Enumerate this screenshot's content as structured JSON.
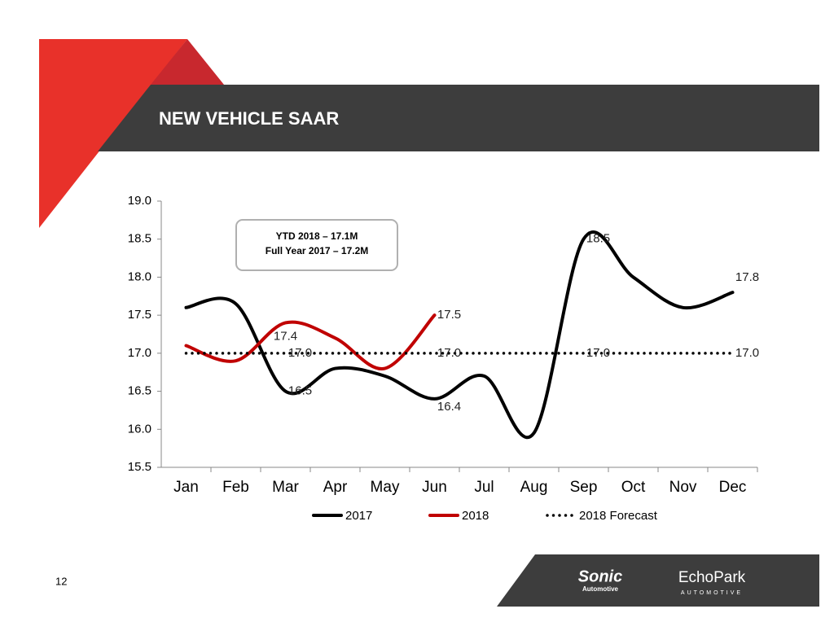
{
  "slide": {
    "title": "NEW VEHICLE SAAR",
    "page_number": "12",
    "logo_sonic": "Sonic",
    "logo_sonic_sub": "Automotive",
    "logo_echopark": "EchoPark",
    "logo_echopark_sub": "AUTOMOTIVE"
  },
  "chart_data": {
    "type": "line",
    "annotations": [
      "YTD 2018 – 17.1M",
      "Full Year 2017 – 17.2M"
    ],
    "categories": [
      "Jan",
      "Feb",
      "Mar",
      "Apr",
      "May",
      "Jun",
      "Jul",
      "Aug",
      "Sep",
      "Oct",
      "Nov",
      "Dec"
    ],
    "series": [
      {
        "name": "2017",
        "color": "#000000",
        "style": "solid",
        "values": [
          17.6,
          17.65,
          16.5,
          16.8,
          16.7,
          16.4,
          16.7,
          15.95,
          18.5,
          18.0,
          17.6,
          17.8
        ],
        "value_labels": [
          null,
          null,
          "16.5",
          null,
          null,
          "16.4",
          null,
          null,
          "18.5",
          null,
          null,
          "17.8"
        ]
      },
      {
        "name": "2018",
        "color": "#c00000",
        "style": "solid",
        "values": [
          17.1,
          16.9,
          17.4,
          17.2,
          16.8,
          17.5,
          null,
          null,
          null,
          null,
          null,
          null
        ],
        "value_labels": [
          null,
          null,
          "17.4",
          null,
          null,
          "17.5",
          null,
          null,
          null,
          null,
          null,
          null
        ]
      },
      {
        "name": "2018 Forecast",
        "color": "#000000",
        "style": "dotted",
        "values": [
          17.0,
          17.0,
          17.0,
          17.0,
          17.0,
          17.0,
          17.0,
          17.0,
          17.0,
          17.0,
          17.0,
          17.0
        ],
        "value_labels": [
          null,
          null,
          "17.0",
          null,
          null,
          "17.0",
          null,
          null,
          "17.0",
          null,
          null,
          "17.0"
        ]
      }
    ],
    "ylim": [
      15.5,
      19.0
    ],
    "yticks": [
      15.5,
      {
        "value": 16.0,
        "label": "16.0"
      },
      16.5,
      {
        "value": 17.0,
        "label": "17.0"
      },
      17.5,
      {
        "value": 18.0,
        "label": "18.0"
      },
      18.5,
      {
        "value": 19.0,
        "label": "19.0"
      }
    ],
    "grid": false,
    "legend": "bottom"
  }
}
